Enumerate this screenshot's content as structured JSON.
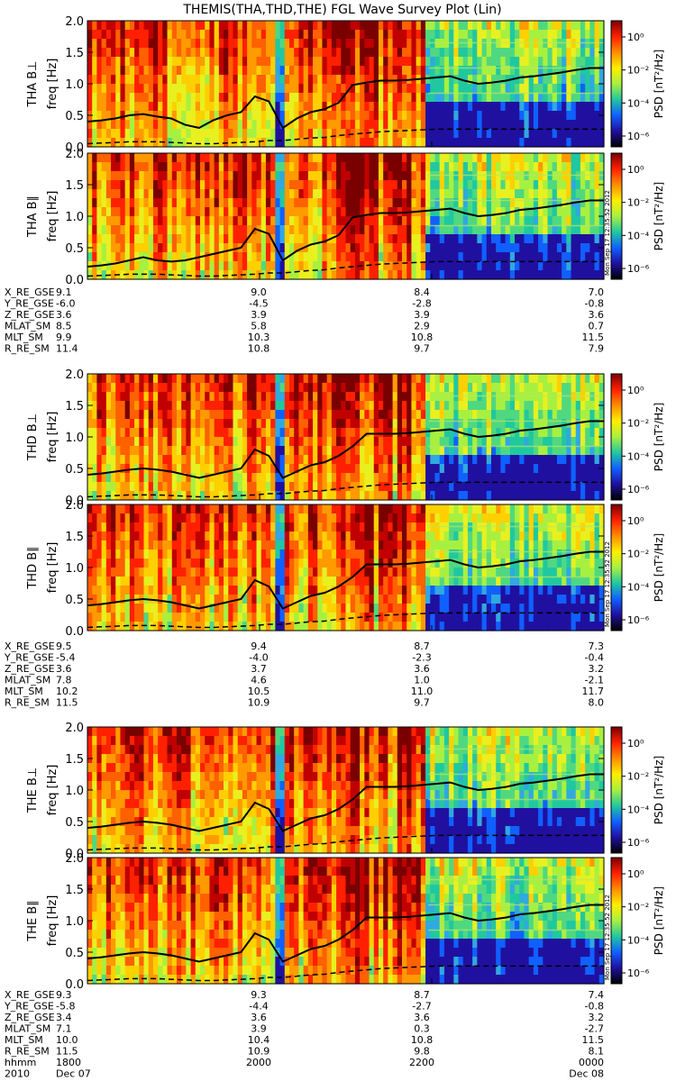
{
  "title": "THEMIS(THA,THD,THE) FGL Wave Survey Plot (Lin)",
  "colorbar": {
    "label": "PSD [nT²/Hz]",
    "ticks": [
      "10⁰",
      "10⁻²",
      "10⁻⁴",
      "10⁻⁶"
    ],
    "colors": [
      "#7a0000",
      "#ff2000",
      "#ff8c00",
      "#ffee00",
      "#a8f040",
      "#20c8a0",
      "#1060ff",
      "#2010a0",
      "#000000"
    ]
  },
  "timestamp": "Mon Sep 17 12:35:52 2012",
  "freq_axis": {
    "label": "freq [Hz]",
    "ticks": [
      "0.0",
      "0.5",
      "1.0",
      "1.5",
      "2.0"
    ],
    "range": [
      0,
      2
    ]
  },
  "panels": [
    {
      "probe": "THA",
      "component": "B⊥",
      "ylabel_prefix": "THA B⊥"
    },
    {
      "probe": "THA",
      "component": "B∥",
      "ylabel_prefix": "THA B∥"
    },
    {
      "probe": "THD",
      "component": "B⊥",
      "ylabel_prefix": "THD B⊥"
    },
    {
      "probe": "THD",
      "component": "B∥",
      "ylabel_prefix": "THD B∥"
    },
    {
      "probe": "THE",
      "component": "B⊥",
      "ylabel_prefix": "THE B⊥"
    },
    {
      "probe": "THE",
      "component": "B∥",
      "ylabel_prefix": "THE B∥"
    }
  ],
  "ephemeris": [
    {
      "probe": "THA",
      "rows": [
        {
          "label": "X_RE_GSE",
          "values": [
            "9.1",
            "9.0",
            "8.4",
            "7.0"
          ]
        },
        {
          "label": "Y_RE_GSE",
          "values": [
            "-6.0",
            "-4.5",
            "-2.8",
            "-0.8"
          ]
        },
        {
          "label": "Z_RE_GSE",
          "values": [
            "3.6",
            "3.9",
            "3.9",
            "3.6"
          ]
        },
        {
          "label": "MLAT_SM",
          "values": [
            "8.5",
            "5.8",
            "2.9",
            "0.7"
          ]
        },
        {
          "label": "MLT_SM",
          "values": [
            "9.9",
            "10.3",
            "10.8",
            "11.5"
          ]
        },
        {
          "label": "R_RE_SM",
          "values": [
            "11.4",
            "10.8",
            "9.7",
            "7.9"
          ]
        }
      ]
    },
    {
      "probe": "THD",
      "rows": [
        {
          "label": "X_RE_GSE",
          "values": [
            "9.5",
            "9.4",
            "8.7",
            "7.3"
          ]
        },
        {
          "label": "Y_RE_GSE",
          "values": [
            "-5.4",
            "-4.0",
            "-2.3",
            "-0.4"
          ]
        },
        {
          "label": "Z_RE_GSE",
          "values": [
            "3.6",
            "3.7",
            "3.6",
            "3.2"
          ]
        },
        {
          "label": "MLAT_SM",
          "values": [
            "7.8",
            "4.6",
            "1.0",
            "-2.1"
          ]
        },
        {
          "label": "MLT_SM",
          "values": [
            "10.2",
            "10.5",
            "11.0",
            "11.7"
          ]
        },
        {
          "label": "R_RE_SM",
          "values": [
            "11.5",
            "10.9",
            "9.7",
            "8.0"
          ]
        }
      ]
    },
    {
      "probe": "THE",
      "rows": [
        {
          "label": "X_RE_GSE",
          "values": [
            "9.3",
            "9.3",
            "8.7",
            "7.4"
          ]
        },
        {
          "label": "Y_RE_GSE",
          "values": [
            "-5.8",
            "-4.4",
            "-2.7",
            "-0.8"
          ]
        },
        {
          "label": "Z_RE_GSE",
          "values": [
            "3.4",
            "3.6",
            "3.6",
            "3.2"
          ]
        },
        {
          "label": "MLAT_SM",
          "values": [
            "7.1",
            "3.9",
            "0.3",
            "-2.7"
          ]
        },
        {
          "label": "MLT_SM",
          "values": [
            "10.0",
            "10.4",
            "10.8",
            "11.5"
          ]
        },
        {
          "label": "R_RE_SM",
          "values": [
            "11.5",
            "10.9",
            "9.8",
            "8.1"
          ]
        }
      ]
    }
  ],
  "time_axis": {
    "label": "hhmm",
    "ticks": [
      "1800",
      "2000",
      "2200",
      "0000"
    ],
    "year": "2010",
    "start_date": "Dec 07",
    "end_date": "Dec 08"
  },
  "chart_data": {
    "type": "heatmap",
    "title": "THEMIS(THA,THD,THE) FGL Wave Survey Plot (Lin)",
    "xlabel": "hhmm",
    "ylabel": "freq [Hz]",
    "ylim": [
      0,
      2
    ],
    "x_ticks": [
      "1800",
      "2000",
      "2200",
      "0000"
    ],
    "colorbar_label": "PSD [nT²/Hz]",
    "colorbar_range_log10": [
      -7,
      1
    ],
    "series": [
      {
        "name": "THA B⊥",
        "fce_line_hz": [
          0.4,
          0.42,
          0.45,
          0.5,
          0.52,
          0.48,
          0.45,
          0.35,
          0.3,
          0.42,
          0.5,
          0.55,
          0.8,
          0.72,
          0.3,
          0.45,
          0.55,
          0.6,
          0.7,
          0.98,
          1.02,
          1.05,
          1.05,
          1.06,
          1.08,
          1.1,
          1.12,
          1.05,
          1.0,
          1.02,
          1.05,
          1.1,
          1.12,
          1.15,
          1.18,
          1.22,
          1.25,
          1.25
        ],
        "lower_line_hz": [
          0.05,
          0.06,
          0.07,
          0.08,
          0.08,
          0.08,
          0.07,
          0.06,
          0.05,
          0.05,
          0.06,
          0.07,
          0.08,
          0.1,
          0.1,
          0.12,
          0.14,
          0.15,
          0.18,
          0.2,
          0.22,
          0.24,
          0.25,
          0.26,
          0.27,
          0.28,
          0.28,
          0.28,
          0.28,
          0.28,
          0.28,
          0.28,
          0.28,
          0.28,
          0.28,
          0.28,
          0.28,
          0.28
        ]
      },
      {
        "name": "THA B∥",
        "fce_line_hz": [
          0.2,
          0.22,
          0.25,
          0.3,
          0.35,
          0.3,
          0.28,
          0.3,
          0.35,
          0.4,
          0.45,
          0.5,
          0.8,
          0.72,
          0.3,
          0.45,
          0.55,
          0.6,
          0.7,
          0.98,
          1.02,
          1.05,
          1.05,
          1.06,
          1.08,
          1.1,
          1.12,
          1.05,
          1.0,
          1.02,
          1.05,
          1.1,
          1.12,
          1.15,
          1.18,
          1.22,
          1.25,
          1.25
        ],
        "lower_line_hz": [
          0.05,
          0.06,
          0.07,
          0.08,
          0.08,
          0.08,
          0.07,
          0.06,
          0.05,
          0.05,
          0.06,
          0.07,
          0.08,
          0.1,
          0.1,
          0.12,
          0.14,
          0.15,
          0.18,
          0.2,
          0.22,
          0.24,
          0.25,
          0.26,
          0.27,
          0.28,
          0.28,
          0.28,
          0.28,
          0.28,
          0.28,
          0.28,
          0.28,
          0.28,
          0.28,
          0.28,
          0.28,
          0.28
        ]
      },
      {
        "name": "THD B⊥",
        "fce_line_hz": [
          0.4,
          0.42,
          0.45,
          0.48,
          0.5,
          0.48,
          0.45,
          0.4,
          0.35,
          0.4,
          0.45,
          0.5,
          0.8,
          0.7,
          0.35,
          0.45,
          0.55,
          0.6,
          0.7,
          0.85,
          1.05,
          1.05,
          1.05,
          1.06,
          1.08,
          1.1,
          1.12,
          1.05,
          1.0,
          1.02,
          1.05,
          1.1,
          1.12,
          1.15,
          1.18,
          1.22,
          1.25,
          1.25
        ],
        "lower_line_hz": [
          0.05,
          0.06,
          0.07,
          0.08,
          0.08,
          0.08,
          0.07,
          0.06,
          0.05,
          0.05,
          0.06,
          0.07,
          0.08,
          0.1,
          0.1,
          0.12,
          0.14,
          0.15,
          0.18,
          0.2,
          0.22,
          0.24,
          0.25,
          0.26,
          0.27,
          0.28,
          0.28,
          0.28,
          0.28,
          0.28,
          0.28,
          0.28,
          0.28,
          0.28,
          0.28,
          0.28,
          0.28,
          0.28
        ]
      },
      {
        "name": "THD B∥",
        "fce_line_hz": [
          0.4,
          0.42,
          0.45,
          0.48,
          0.5,
          0.48,
          0.45,
          0.4,
          0.35,
          0.4,
          0.45,
          0.5,
          0.8,
          0.7,
          0.35,
          0.45,
          0.55,
          0.6,
          0.7,
          0.85,
          1.05,
          1.05,
          1.05,
          1.06,
          1.08,
          1.1,
          1.12,
          1.05,
          1.0,
          1.02,
          1.05,
          1.1,
          1.12,
          1.15,
          1.18,
          1.22,
          1.25,
          1.25
        ],
        "lower_line_hz": [
          0.05,
          0.06,
          0.07,
          0.08,
          0.08,
          0.08,
          0.07,
          0.06,
          0.05,
          0.05,
          0.06,
          0.07,
          0.08,
          0.1,
          0.1,
          0.12,
          0.14,
          0.15,
          0.18,
          0.2,
          0.22,
          0.24,
          0.25,
          0.26,
          0.27,
          0.28,
          0.28,
          0.28,
          0.28,
          0.28,
          0.28,
          0.28,
          0.28,
          0.28,
          0.28,
          0.28,
          0.28,
          0.28
        ]
      },
      {
        "name": "THE B⊥",
        "fce_line_hz": [
          0.4,
          0.42,
          0.45,
          0.48,
          0.5,
          0.48,
          0.45,
          0.4,
          0.35,
          0.4,
          0.45,
          0.5,
          0.8,
          0.7,
          0.35,
          0.45,
          0.55,
          0.6,
          0.7,
          0.85,
          1.05,
          1.05,
          1.05,
          1.06,
          1.08,
          1.1,
          1.12,
          1.05,
          1.0,
          1.02,
          1.05,
          1.1,
          1.12,
          1.15,
          1.18,
          1.22,
          1.25,
          1.25
        ],
        "lower_line_hz": [
          0.05,
          0.06,
          0.07,
          0.08,
          0.08,
          0.08,
          0.07,
          0.06,
          0.05,
          0.05,
          0.06,
          0.07,
          0.08,
          0.1,
          0.1,
          0.12,
          0.14,
          0.15,
          0.18,
          0.2,
          0.22,
          0.24,
          0.25,
          0.26,
          0.27,
          0.28,
          0.28,
          0.28,
          0.28,
          0.28,
          0.28,
          0.28,
          0.28,
          0.28,
          0.28,
          0.28,
          0.28,
          0.28
        ]
      },
      {
        "name": "THE B∥",
        "fce_line_hz": [
          0.4,
          0.42,
          0.45,
          0.48,
          0.5,
          0.48,
          0.45,
          0.4,
          0.35,
          0.4,
          0.45,
          0.5,
          0.8,
          0.7,
          0.35,
          0.45,
          0.55,
          0.6,
          0.7,
          0.85,
          1.05,
          1.05,
          1.05,
          1.06,
          1.08,
          1.1,
          1.12,
          1.05,
          1.0,
          1.02,
          1.05,
          1.1,
          1.12,
          1.15,
          1.18,
          1.22,
          1.25,
          1.25
        ],
        "lower_line_hz": [
          0.05,
          0.06,
          0.07,
          0.08,
          0.08,
          0.08,
          0.07,
          0.06,
          0.05,
          0.05,
          0.06,
          0.07,
          0.08,
          0.1,
          0.1,
          0.12,
          0.14,
          0.15,
          0.18,
          0.2,
          0.22,
          0.24,
          0.25,
          0.26,
          0.27,
          0.28,
          0.28,
          0.28,
          0.28,
          0.28,
          0.28,
          0.28,
          0.28,
          0.28,
          0.28,
          0.28,
          0.28,
          0.28
        ]
      }
    ],
    "grid": false
  }
}
